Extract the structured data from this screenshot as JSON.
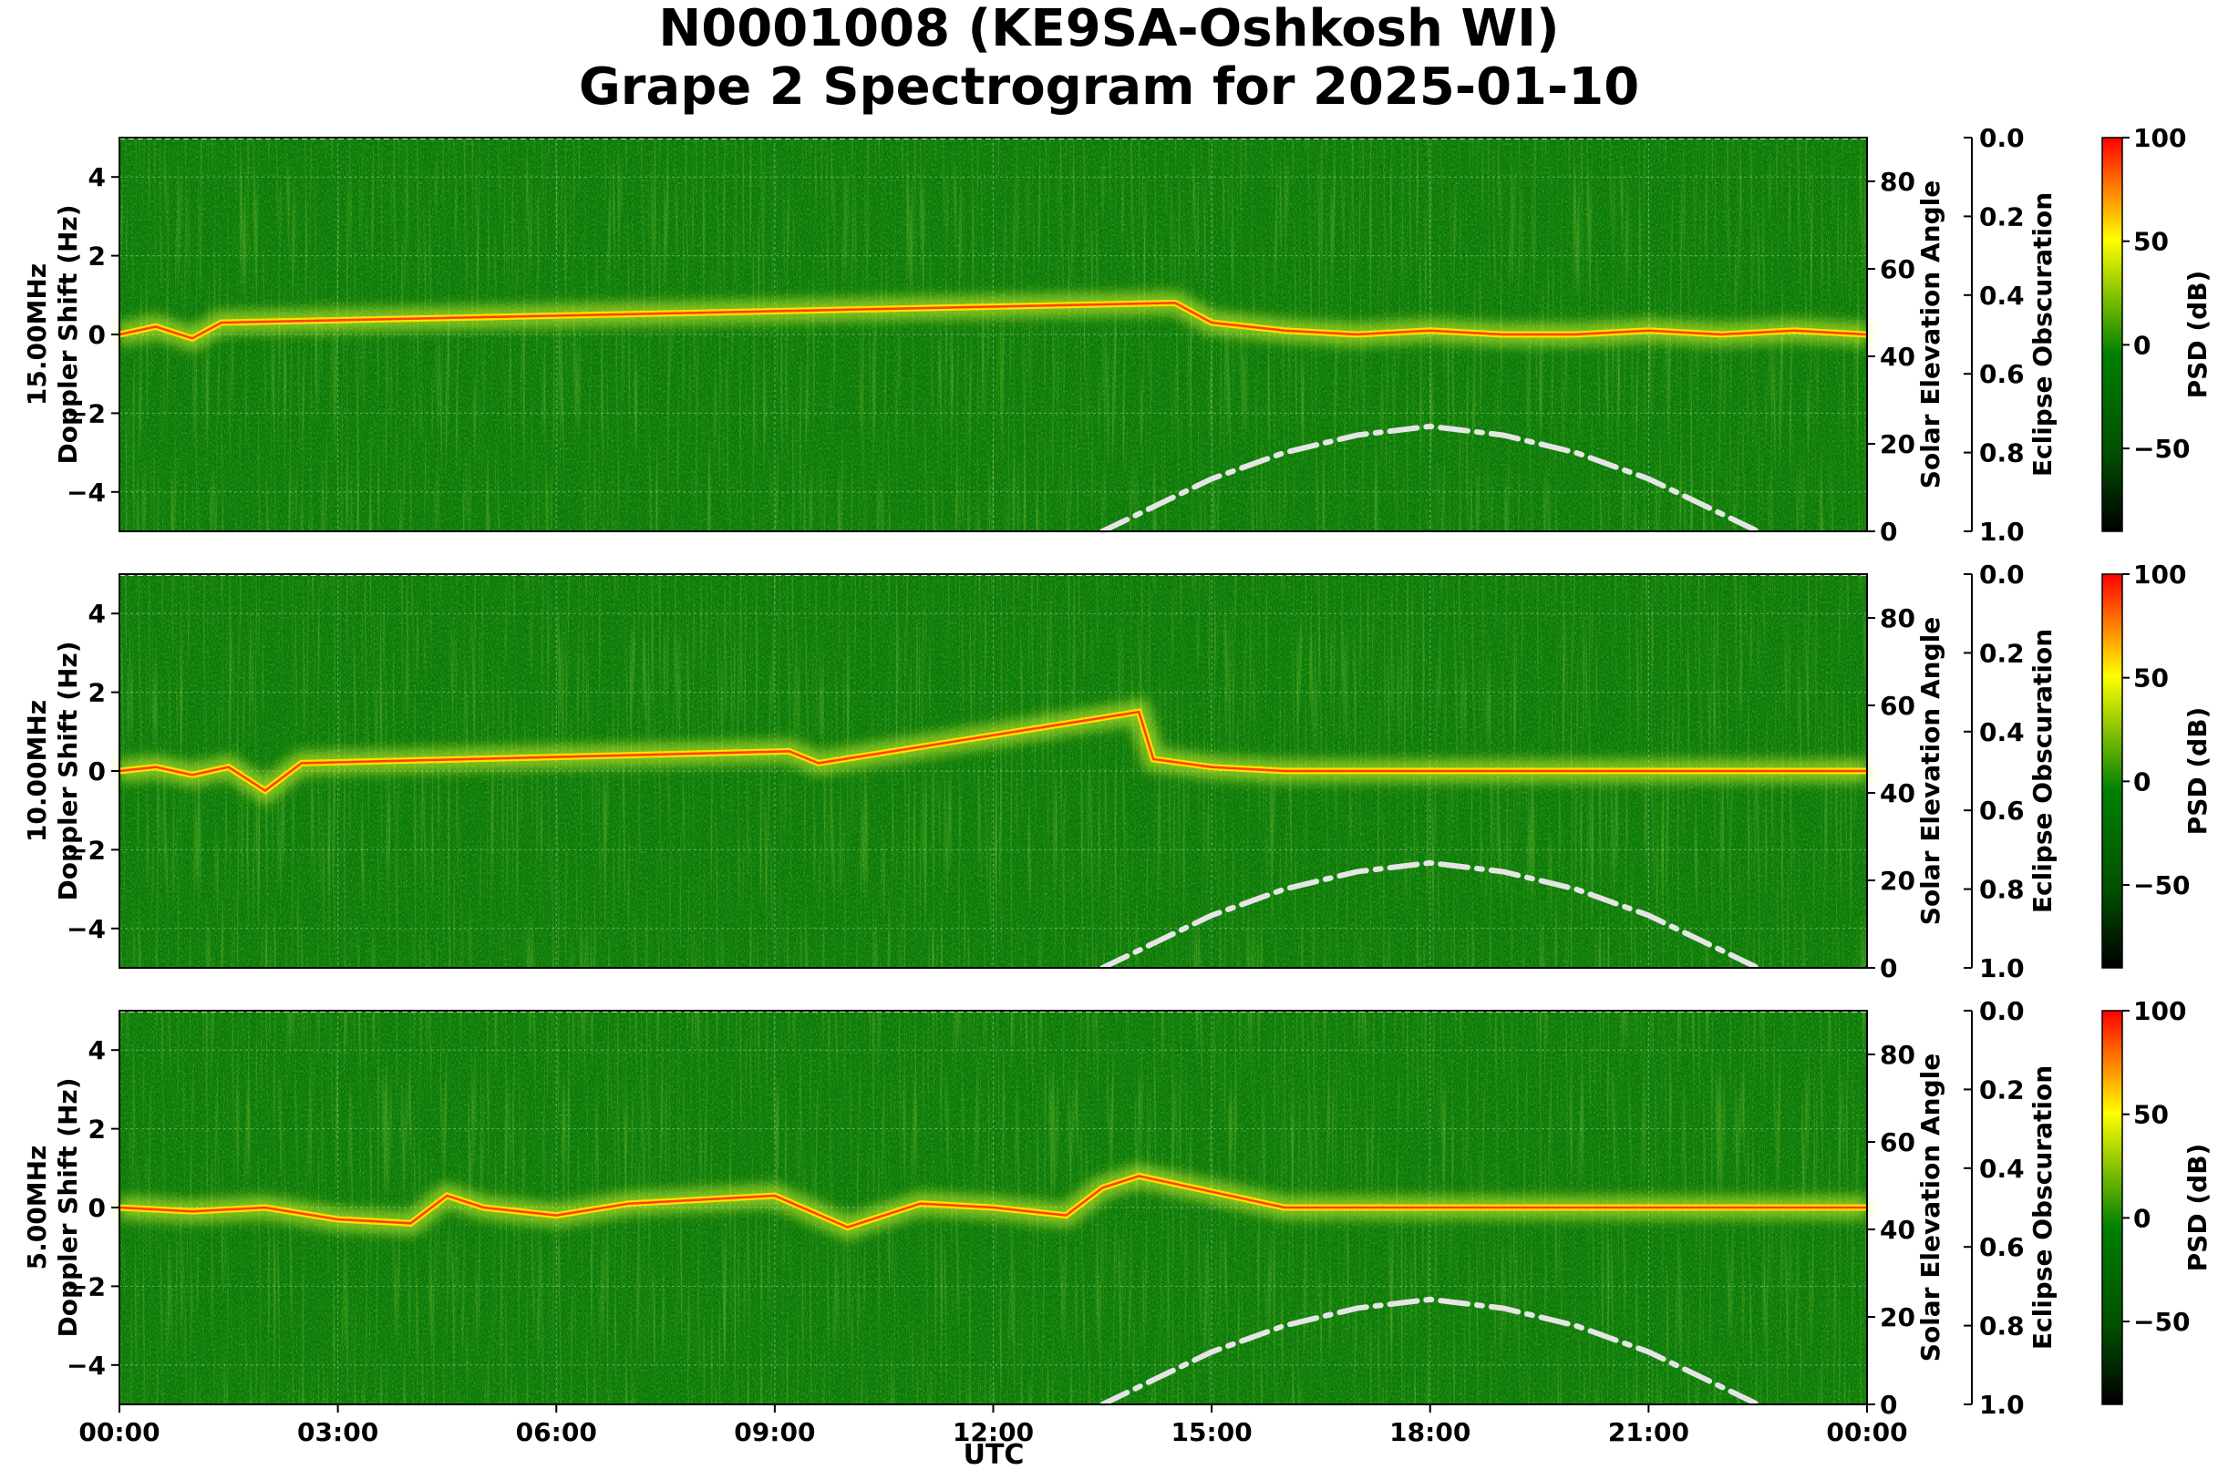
{
  "title": {
    "line1": "N0001008 (KE9SA-Oshkosh WI)",
    "line2": "Grape 2 Spectrogram for 2025-01-10"
  },
  "chart_data": {
    "type": "heatmap",
    "xlabel": "UTC",
    "x_ticks": [
      "00:00",
      "03:00",
      "06:00",
      "09:00",
      "12:00",
      "15:00",
      "18:00",
      "21:00",
      "00:00"
    ],
    "xlim_hours": [
      0,
      24
    ],
    "grid": true,
    "y_ticks": [
      4,
      2,
      0,
      -2,
      -4
    ],
    "ylim": [
      -5,
      5
    ],
    "right_axis": {
      "label": "Solar Elevation Angle",
      "ticks": [
        80,
        60,
        40,
        20,
        0
      ],
      "range": [
        0,
        90
      ]
    },
    "eclipse_axis": {
      "label": "Eclipse Obscuration",
      "ticks": [
        "0.0",
        "0.2",
        "0.4",
        "0.6",
        "0.8",
        "1.0"
      ],
      "range": [
        0,
        1
      ]
    },
    "colorbar": {
      "label": "PSD (dB)",
      "ticks": [
        "100",
        "50",
        "0",
        "−50"
      ],
      "range": [
        -90,
        100
      ],
      "colors": [
        "#000000",
        "#006400",
        "#008000",
        "#ffff00",
        "#ff0000"
      ]
    },
    "solar_elevation_curve": {
      "style": "dash-dot",
      "color": "#e5e5e5",
      "hours": [
        13.5,
        14,
        15,
        16,
        17,
        18,
        19,
        20,
        21,
        22,
        22.5
      ],
      "degrees": [
        0,
        4,
        12,
        18,
        22,
        24,
        22,
        18,
        12,
        4,
        0
      ]
    },
    "series": [
      {
        "name": "15.00MHz",
        "ylabel": "Doppler Shift (Hz)",
        "carrier": {
          "hours": [
            0,
            0.5,
            1,
            1.4,
            14.5,
            15,
            16,
            17,
            18,
            19,
            20,
            21,
            22,
            23,
            24
          ],
          "hz": [
            0,
            0.2,
            -0.1,
            0.3,
            0.8,
            0.3,
            0.1,
            0.0,
            0.1,
            0.0,
            0.0,
            0.1,
            0.0,
            0.1,
            0.0
          ]
        }
      },
      {
        "name": "10.00MHz",
        "ylabel": "Doppler Shift (Hz)",
        "carrier": {
          "hours": [
            0,
            0.5,
            1,
            1.5,
            2,
            2.5,
            9.2,
            9.6,
            14,
            14.2,
            15,
            16,
            18,
            20,
            22,
            24
          ],
          "hz": [
            0,
            0.1,
            -0.1,
            0.1,
            -0.5,
            0.2,
            0.5,
            0.2,
            1.5,
            0.3,
            0.1,
            0.0,
            0.0,
            0.0,
            0.0,
            0.0
          ]
        }
      },
      {
        "name": "5.00MHz",
        "ylabel": "Doppler Shift (Hz)",
        "carrier": {
          "hours": [
            0,
            1,
            2,
            3,
            4,
            4.5,
            5,
            6,
            7,
            8,
            9,
            10,
            11,
            12,
            13,
            13.5,
            14,
            15,
            16,
            18,
            20,
            22,
            24
          ],
          "hz": [
            0,
            -0.1,
            0.0,
            -0.3,
            -0.4,
            0.3,
            0.0,
            -0.2,
            0.1,
            0.2,
            0.3,
            -0.5,
            0.1,
            0.0,
            -0.2,
            0.5,
            0.8,
            0.4,
            0.0,
            0.0,
            0.0,
            0.0,
            0.0
          ]
        }
      }
    ]
  }
}
